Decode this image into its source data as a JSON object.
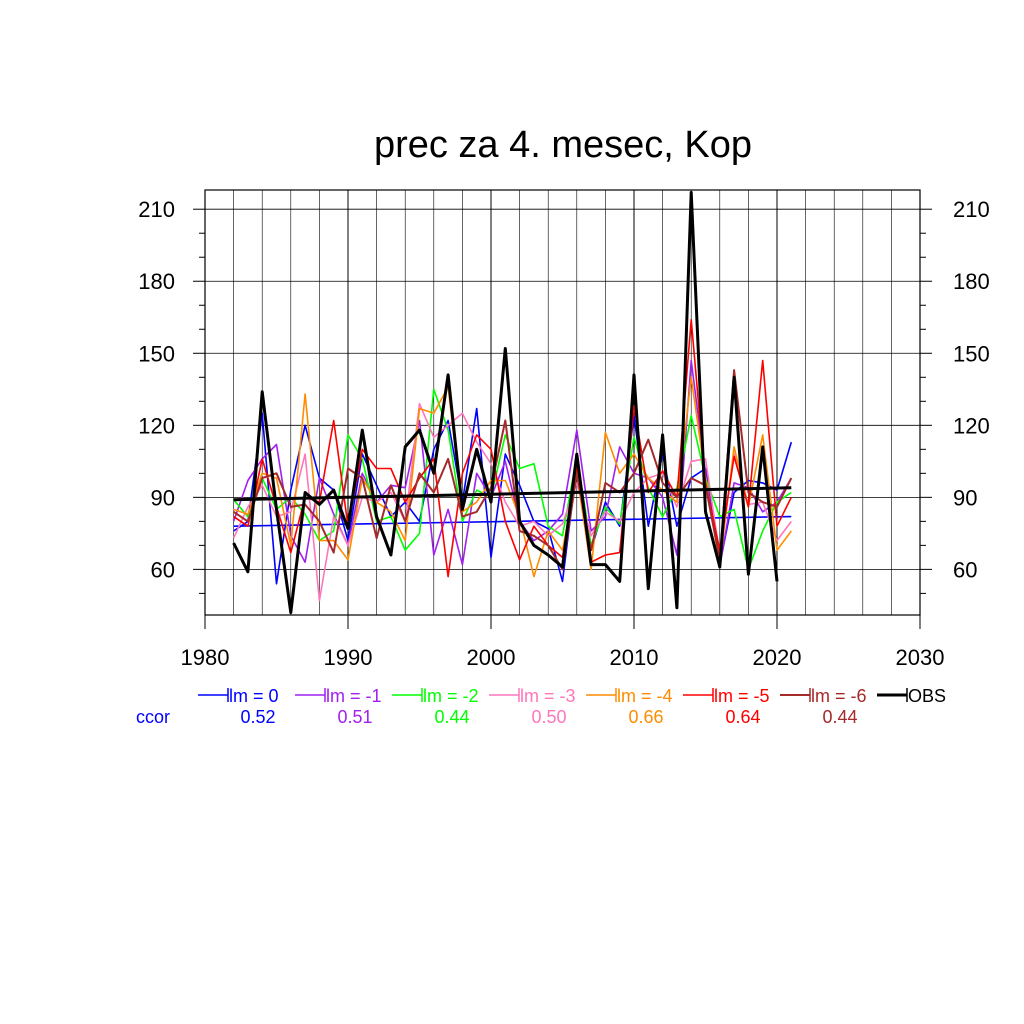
{
  "chart_data": {
    "type": "line",
    "title": "prec za 4. mesec, Kop",
    "xlabel": "",
    "ylabel": "",
    "xlim": [
      1980,
      2030
    ],
    "ylim": [
      41,
      218
    ],
    "x_ticks": [
      1980,
      1990,
      2000,
      2010,
      2020,
      2030
    ],
    "y_ticks": [
      60,
      90,
      120,
      150,
      180,
      210
    ],
    "grid": true,
    "legend_position": "bottom",
    "corr_label": "ccor",
    "x": [
      1982,
      1983,
      1984,
      1985,
      1986,
      1987,
      1988,
      1989,
      1990,
      1991,
      1992,
      1993,
      1994,
      1995,
      1996,
      1997,
      1998,
      1999,
      2000,
      2001,
      2002,
      2003,
      2004,
      2005,
      2006,
      2007,
      2008,
      2009,
      2010,
      2011,
      2012,
      2013,
      2014,
      2015,
      2016,
      2017,
      2018,
      2019,
      2020,
      2021
    ],
    "series": [
      {
        "name": "lm = 0",
        "color": "#0000ff",
        "width": 1.6,
        "corr": "0.52",
        "trend": [
          78,
          82
        ],
        "values": [
          76,
          80,
          125,
          54,
          93,
          120,
          98,
          93,
          72,
          108,
          95,
          82,
          88,
          80,
          110,
          122,
          88,
          127,
          65,
          108,
          95,
          80,
          77,
          55,
          103,
          68,
          88,
          78,
          124,
          78,
          108,
          78,
          98,
          102,
          62,
          92,
          97,
          96,
          93,
          113
        ]
      },
      {
        "name": "lm = -1",
        "color": "#a020f0",
        "width": 1.6,
        "corr": "0.51",
        "trend": null,
        "values": [
          80,
          97,
          106,
          112,
          74,
          63,
          98,
          83,
          70,
          100,
          88,
          95,
          94,
          122,
          66,
          85,
          62,
          100,
          90,
          105,
          80,
          72,
          76,
          83,
          118,
          76,
          82,
          111,
          100,
          98,
          90,
          66,
          147,
          100,
          61,
          96,
          94,
          84,
          88,
          98
        ]
      },
      {
        "name": "lm = -2",
        "color": "#00ff00",
        "width": 1.6,
        "corr": "0.44",
        "trend": null,
        "values": [
          89,
          82,
          98,
          85,
          90,
          83,
          72,
          76,
          116,
          106,
          80,
          82,
          68,
          75,
          135,
          118,
          80,
          93,
          90,
          116,
          102,
          104,
          78,
          74,
          107,
          70,
          86,
          79,
          115,
          94,
          82,
          94,
          124,
          98,
          82,
          85,
          60,
          76,
          88,
          92
        ]
      },
      {
        "name": "lm = -3",
        "color": "#ff77bb",
        "width": 1.6,
        "corr": "0.50",
        "trend": null,
        "values": [
          73,
          86,
          95,
          82,
          84,
          108,
          47,
          82,
          70,
          90,
          88,
          92,
          80,
          129,
          115,
          120,
          125,
          113,
          104,
          88,
          78,
          80,
          74,
          79,
          96,
          74,
          84,
          80,
          92,
          98,
          100,
          86,
          105,
          106,
          66,
          108,
          87,
          88,
          72,
          80
        ]
      },
      {
        "name": "lm = -4",
        "color": "#ff8c00",
        "width": 1.6,
        "corr": "0.66",
        "trend": null,
        "values": [
          85,
          83,
          100,
          98,
          70,
          133,
          72,
          72,
          64,
          98,
          88,
          84,
          72,
          127,
          125,
          136,
          84,
          88,
          97,
          97,
          82,
          57,
          76,
          68,
          100,
          60,
          117,
          100,
          108,
          98,
          93,
          88,
          140,
          98,
          62,
          111,
          86,
          116,
          68,
          76
        ]
      },
      {
        "name": "lm = -5",
        "color": "#ff0000",
        "width": 1.6,
        "corr": "0.64",
        "trend": null,
        "values": [
          82,
          78,
          106,
          86,
          67,
          90,
          88,
          122,
          78,
          110,
          102,
          102,
          88,
          98,
          106,
          57,
          100,
          116,
          110,
          80,
          64,
          78,
          70,
          65,
          102,
          63,
          66,
          67,
          128,
          92,
          101,
          90,
          164,
          96,
          68,
          107,
          86,
          147,
          78,
          90
        ]
      },
      {
        "name": "lm = -6",
        "color": "#a52a2a",
        "width": 2,
        "corr": "0.44",
        "trend": null,
        "values": [
          84,
          80,
          98,
          100,
          86,
          87,
          80,
          67,
          102,
          98,
          73,
          95,
          80,
          100,
          92,
          106,
          82,
          84,
          94,
          122,
          76,
          74,
          70,
          60,
          100,
          68,
          96,
          92,
          100,
          114,
          96,
          90,
          98,
          95,
          64,
          143,
          92,
          88,
          86,
          98
        ]
      },
      {
        "name": "OBS",
        "color": "#000000",
        "width": 3,
        "corr": null,
        "trend": [
          89,
          94
        ],
        "values": [
          71,
          59,
          134,
          85,
          42,
          92,
          87,
          93,
          77,
          118,
          82,
          66,
          111,
          118,
          100,
          141,
          85,
          110,
          88,
          152,
          80,
          70,
          66,
          61,
          108,
          62,
          62,
          55,
          141,
          52,
          116,
          44,
          217,
          84,
          61,
          140,
          58,
          111,
          55,
          null
        ]
      }
    ]
  }
}
